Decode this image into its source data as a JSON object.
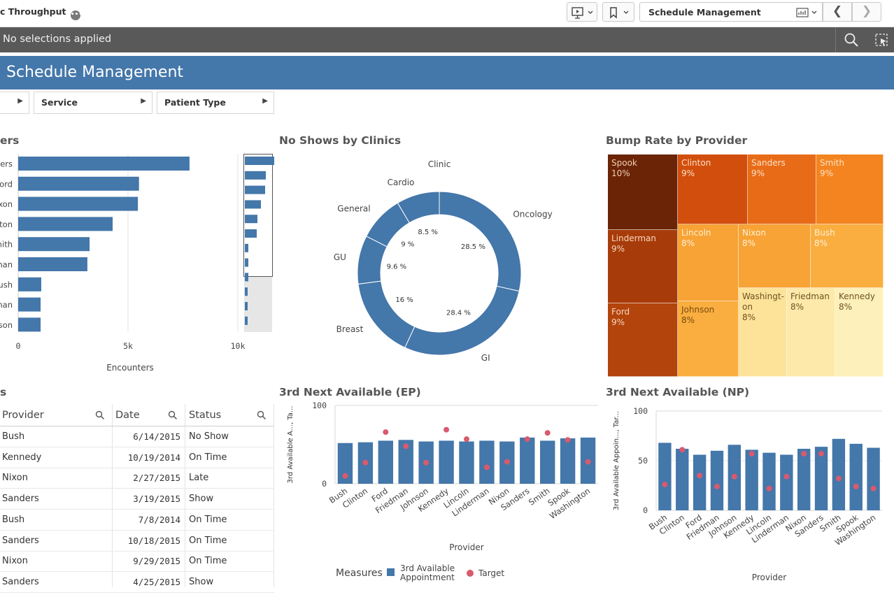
{
  "toolbar": {
    "app_title": "c Throughput",
    "sheet_name": "Schedule Management",
    "prev_label": "❮",
    "next_label": "❯"
  },
  "selections": {
    "text": "No selections applied"
  },
  "sheet": {
    "title": "Schedule Management"
  },
  "filters": [
    {
      "label": ""
    },
    {
      "label": "Service"
    },
    {
      "label": "Patient Type"
    }
  ],
  "panels": {
    "encounters_title": "ers",
    "noshows_title": "No Shows by Clinics",
    "bump_title": "Bump Rate by Provider",
    "table_title": "s",
    "ep_title": "3rd Next Available (EP)",
    "np_title": "3rd Next Available (NP)"
  },
  "colors": {
    "accent": "#4477aa",
    "bar": "#4477aa",
    "target": "#d95a6e",
    "selection_bar": "#595959"
  },
  "chart_data": [
    {
      "id": "encounters",
      "type": "bar",
      "orientation": "horizontal",
      "categories": [
        "ders",
        "ord",
        "ixon",
        "ton",
        "mith",
        "man",
        "ush",
        "nan",
        "son"
      ],
      "values": [
        7800,
        5500,
        5450,
        4300,
        3250,
        3150,
        1050,
        1020,
        1020
      ],
      "xlabel": "Encounters",
      "ticks": [
        "0",
        "5k",
        "10k"
      ],
      "xlim": [
        -800,
        10000
      ],
      "grid": true
    },
    {
      "id": "noshows",
      "type": "pie",
      "legend_title": "Clinic",
      "slices": [
        {
          "label": "Oncology",
          "value": 28.5,
          "value_label": "28.5 %"
        },
        {
          "label": "GI",
          "value": 28.4,
          "value_label": "28.4 %"
        },
        {
          "label": "Breast",
          "value": 16,
          "value_label": "16 %"
        },
        {
          "label": "GU",
          "value": 9.6,
          "value_label": "9.6 %"
        },
        {
          "label": "General",
          "value": 9,
          "value_label": "9 %"
        },
        {
          "label": "Cardio",
          "value": 8.5,
          "value_label": "8.5 %"
        }
      ]
    },
    {
      "id": "bump",
      "type": "heatmap",
      "cells": [
        {
          "name": "Spook",
          "value": "10%"
        },
        {
          "name": "Clinton",
          "value": "9%"
        },
        {
          "name": "Sanders",
          "value": "9%"
        },
        {
          "name": "Smith",
          "value": "9%"
        },
        {
          "name": "Linderman",
          "value": "9%"
        },
        {
          "name": "Lincoln",
          "value": "8%"
        },
        {
          "name": "Nixon",
          "value": "8%"
        },
        {
          "name": "Bush",
          "value": "8%"
        },
        {
          "name": "Ford",
          "value": "9%"
        },
        {
          "name": "Johnson",
          "value": "8%"
        },
        {
          "name": "Washingt-\non",
          "value": "8%"
        },
        {
          "name": "Friedman",
          "value": "8%"
        },
        {
          "name": "Kennedy",
          "value": "8%"
        }
      ]
    },
    {
      "id": "ep",
      "type": "bar",
      "categories": [
        "Bush",
        "Clinton",
        "Ford",
        "Friedman",
        "Johnson",
        "Kennedy",
        "Lincoln",
        "Linderman",
        "Nixon",
        "Sanders",
        "Smith",
        "Spook",
        "Washington"
      ],
      "series": [
        {
          "name": "3rd Available Appointment",
          "values": [
            52,
            53,
            55,
            56,
            54,
            55,
            54,
            55,
            54,
            59,
            55,
            58,
            59
          ]
        },
        {
          "name": "Target",
          "values": [
            10,
            27,
            66,
            48,
            27,
            69,
            57,
            21,
            28,
            57,
            65,
            56,
            28
          ]
        }
      ],
      "ylim": [
        0,
        100
      ],
      "yticks": [
        "0",
        "100"
      ],
      "ylabel": "3rd Available A..., Ta...",
      "xlabel": "Provider",
      "legend": {
        "title": "Measures",
        "items": [
          "3rd Available\nAppointment",
          "Target"
        ]
      }
    },
    {
      "id": "np",
      "type": "bar",
      "categories": [
        "Bush",
        "Clinton",
        "Ford",
        "Friedman",
        "Johnson",
        "Kennedy",
        "Lincoln",
        "Linderman",
        "Nixon",
        "Sanders",
        "Smith",
        "Spook",
        "Washington"
      ],
      "series": [
        {
          "name": "3rd Available Appointment",
          "values": [
            68,
            62,
            56,
            60,
            66,
            61,
            58,
            56,
            62,
            64,
            72,
            67,
            63
          ]
        },
        {
          "name": "Target",
          "values": [
            26,
            61,
            35,
            24,
            34,
            57,
            22,
            34,
            57,
            57,
            32,
            24,
            22
          ]
        }
      ],
      "ylim": [
        0,
        100
      ],
      "yticks": [
        "0",
        "50",
        "100"
      ],
      "ylabel": "3rd Available Appoin..., Tar...",
      "xlabel": "Provider"
    }
  ],
  "table": {
    "headers": [
      "Provider",
      "Date",
      "Status"
    ],
    "rows": [
      [
        "Bush",
        "6/14/2015",
        "No Show"
      ],
      [
        "Kennedy",
        "10/19/2014",
        "On Time"
      ],
      [
        "Nixon",
        "2/27/2015",
        "Late"
      ],
      [
        "Sanders",
        "3/19/2015",
        "Show"
      ],
      [
        "Bush",
        "7/8/2014",
        "On Time"
      ],
      [
        "Sanders",
        "10/18/2015",
        "On Time"
      ],
      [
        "Nixon",
        "9/29/2015",
        "On Time"
      ],
      [
        "Sanders",
        "4/25/2015",
        "Show"
      ]
    ]
  }
}
